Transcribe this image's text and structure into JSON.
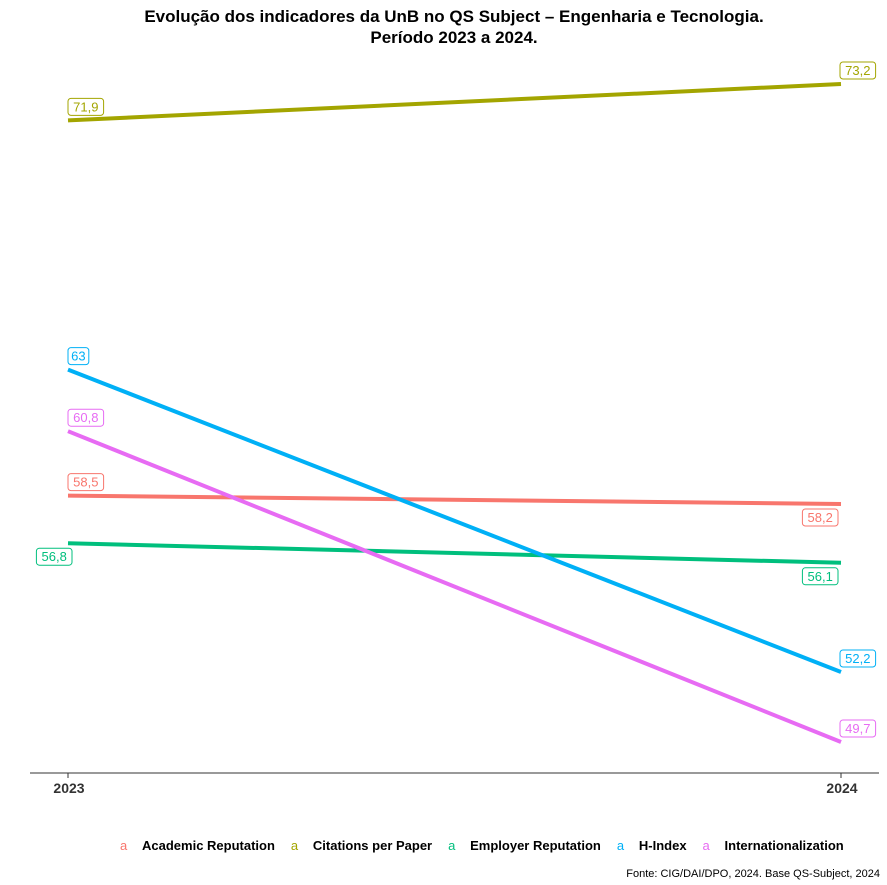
{
  "chart_data": {
    "type": "line",
    "title": "Evolução dos indicadores da UnB no QS Subject – Engenharia e Tecnologia.",
    "subtitle": "Período 2023 a 2024.",
    "categories": [
      "2023",
      "2024"
    ],
    "ylim": [
      48.5,
      74.7
    ],
    "series": [
      {
        "name": "Academic Reputation",
        "color": "#F8766D",
        "values": [
          58.5,
          58.2
        ],
        "labels": [
          "58,5",
          "58,2"
        ]
      },
      {
        "name": "Citations per Paper",
        "color": "#A3A500",
        "values": [
          71.9,
          73.2
        ],
        "labels": [
          "71,9",
          "73,2"
        ]
      },
      {
        "name": "Employer Reputation",
        "color": "#00BF7D",
        "values": [
          56.8,
          56.1
        ],
        "labels": [
          "56,8",
          "56,1"
        ]
      },
      {
        "name": "H-Index",
        "color": "#00B0F6",
        "values": [
          63,
          52.2
        ],
        "labels": [
          "63",
          "52,2"
        ]
      },
      {
        "name": "Internationalization",
        "color": "#E76BF3",
        "values": [
          60.8,
          49.7
        ],
        "labels": [
          "60,8",
          "49,7"
        ]
      }
    ],
    "legend": {
      "position": "bottom",
      "key_glyph": "a"
    },
    "caption": "Fonte: CIG/DAI/DPO, 2024. Base QS-Subject, 2024"
  }
}
